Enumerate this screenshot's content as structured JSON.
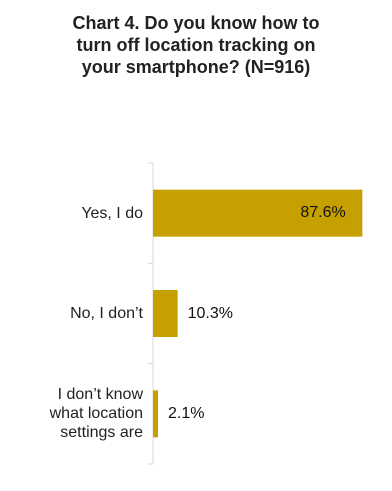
{
  "title_lines": [
    "Chart 4. Do you know how to",
    "turn off location tracking on",
    "your smartphone? (N=916)"
  ],
  "colors": {
    "bar": "#c6a000",
    "axis": "#d9d9d9",
    "text": "#222222"
  },
  "chart_data": {
    "type": "bar",
    "orientation": "horizontal",
    "title": "Chart 4. Do you know how to turn off location tracking on your smartphone? (N=916)",
    "categories": [
      [
        "Yes, I do"
      ],
      [
        "No, I don’t"
      ],
      [
        "I don’t know",
        "what location",
        "settings are"
      ]
    ],
    "values": [
      87.6,
      10.3,
      2.1
    ],
    "value_labels": [
      "87.6%",
      "10.3%",
      "2.1%"
    ],
    "xlim": [
      0,
      100
    ],
    "grid": false,
    "legend": "none"
  }
}
